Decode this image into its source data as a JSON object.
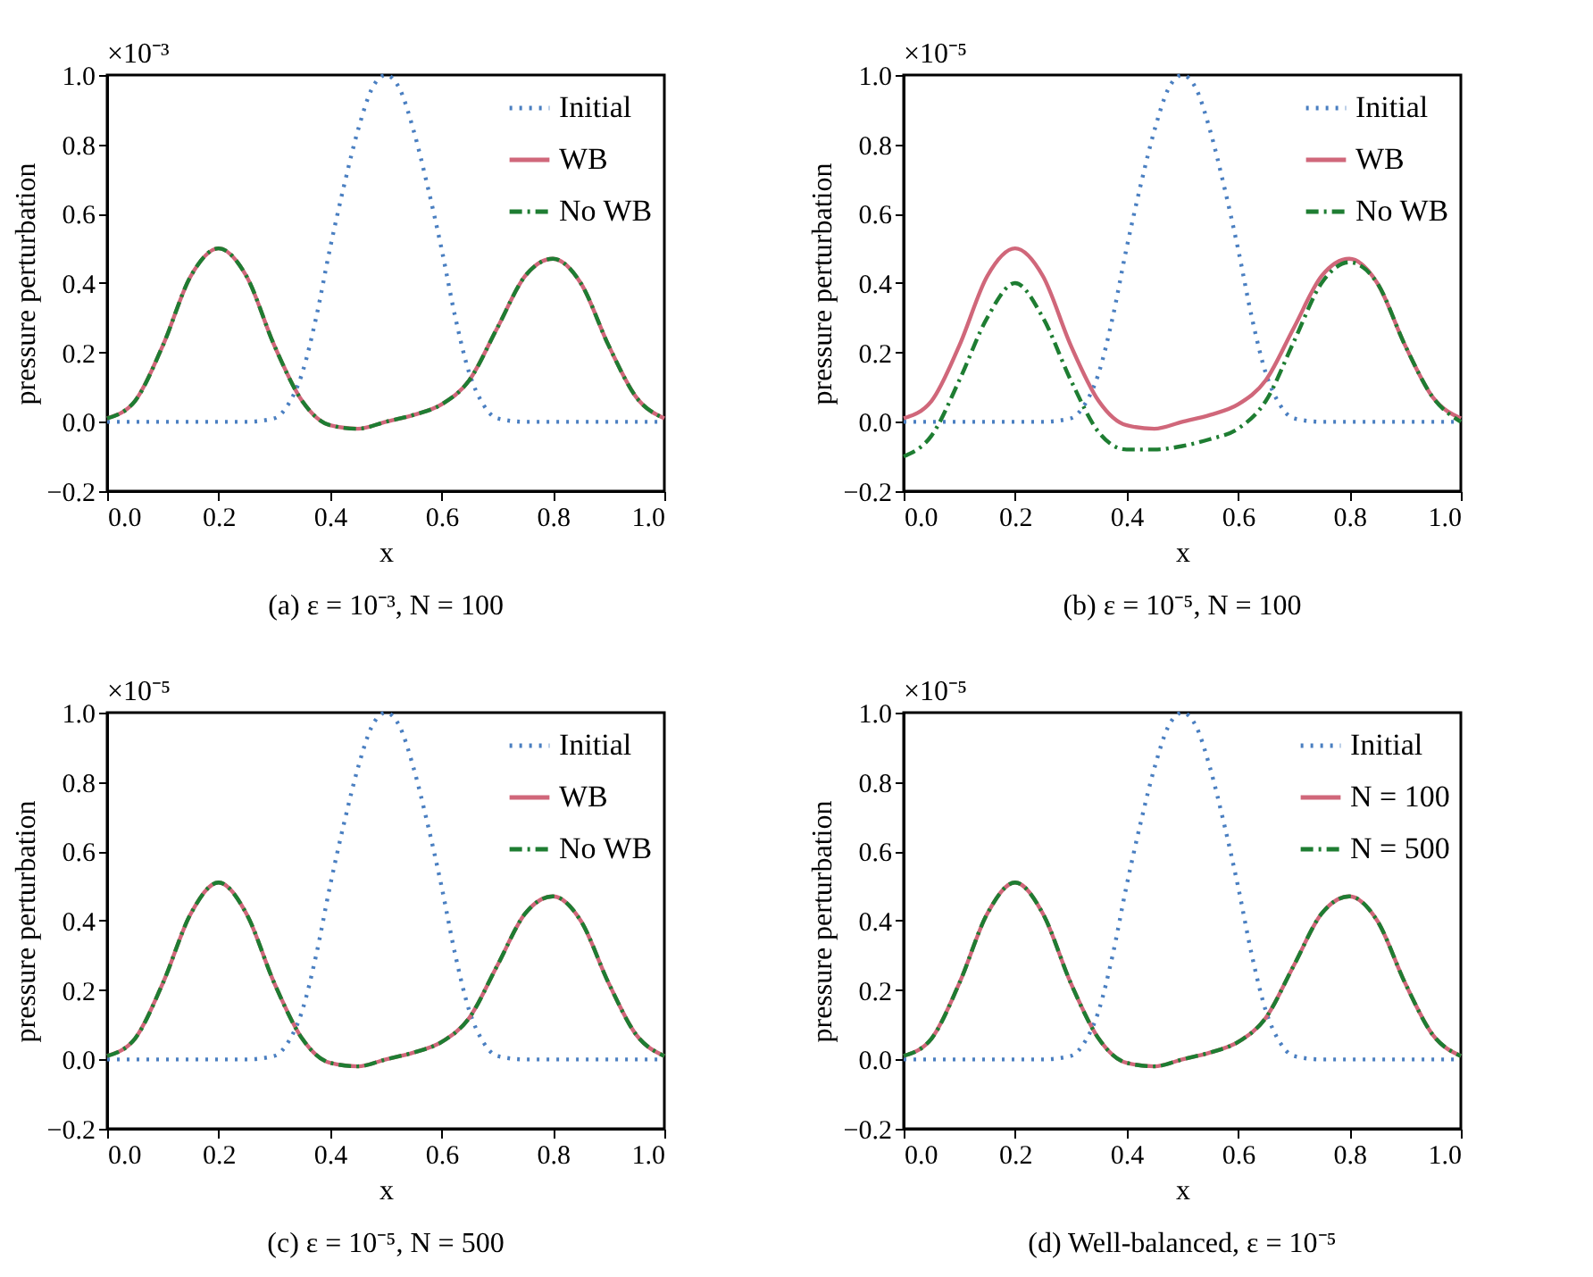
{
  "chart_data": [
    {
      "type": "line",
      "title": "(a) ε = 10⁻³, N = 100",
      "xlabel": "x",
      "ylabel": "pressure perturbation",
      "annotations": [
        "×10⁻³"
      ],
      "legend": "top right",
      "grid": false,
      "xlim": [
        0,
        1
      ],
      "ylim": [
        -0.2,
        1.0
      ],
      "xticks": [
        {
          "value": 0,
          "label": "0.0"
        },
        {
          "value": 0.2,
          "label": "0.2"
        },
        {
          "value": 0.4,
          "label": "0.4"
        },
        {
          "value": 0.6,
          "label": "0.6"
        },
        {
          "value": 0.8,
          "label": "0.8"
        },
        {
          "value": 1,
          "label": "1.0"
        }
      ],
      "yticks": [
        {
          "value": -0.2,
          "label": "−0.2"
        },
        {
          "value": 0,
          "label": "0.0"
        },
        {
          "value": 0.2,
          "label": "0.2"
        },
        {
          "value": 0.4,
          "label": "0.4"
        },
        {
          "value": 0.6,
          "label": "0.6"
        },
        {
          "value": 0.8,
          "label": "0.8"
        },
        {
          "value": 1,
          "label": "1.0"
        }
      ],
      "series": [
        {
          "name": "Initial",
          "color": "#4a7fc1",
          "line_style": "dotted",
          "x": [
            0,
            0.1,
            0.2,
            0.25,
            0.3,
            0.325,
            0.35,
            0.375,
            0.4,
            0.425,
            0.45,
            0.475,
            0.5,
            0.525,
            0.55,
            0.575,
            0.6,
            0.625,
            0.65,
            0.675,
            0.7,
            0.75,
            0.8,
            0.9,
            1
          ],
          "values": [
            0,
            0,
            0,
            0,
            0.01,
            0.05,
            0.14,
            0.3,
            0.5,
            0.68,
            0.84,
            0.96,
            1.0,
            0.96,
            0.84,
            0.68,
            0.5,
            0.3,
            0.14,
            0.05,
            0.01,
            0,
            0,
            0,
            0
          ]
        },
        {
          "name": "WB",
          "color": "#d0677a",
          "line_style": "solid",
          "x": [
            0,
            0.05,
            0.1,
            0.15,
            0.2,
            0.25,
            0.3,
            0.35,
            0.4,
            0.45,
            0.5,
            0.55,
            0.6,
            0.65,
            0.7,
            0.75,
            0.8,
            0.85,
            0.9,
            0.95,
            1
          ],
          "values": [
            0.01,
            0.06,
            0.22,
            0.42,
            0.5,
            0.42,
            0.22,
            0.06,
            -0.01,
            -0.02,
            0.0,
            0.02,
            0.05,
            0.12,
            0.27,
            0.42,
            0.47,
            0.4,
            0.22,
            0.07,
            0.01
          ]
        },
        {
          "name": "No WB",
          "color": "#1e7d32",
          "line_style": "dashed",
          "x": [
            0,
            0.05,
            0.1,
            0.15,
            0.2,
            0.25,
            0.3,
            0.35,
            0.4,
            0.45,
            0.5,
            0.55,
            0.6,
            0.65,
            0.7,
            0.75,
            0.8,
            0.85,
            0.9,
            0.95,
            1
          ],
          "values": [
            0.01,
            0.06,
            0.22,
            0.42,
            0.5,
            0.42,
            0.22,
            0.06,
            -0.01,
            -0.02,
            0.0,
            0.02,
            0.05,
            0.12,
            0.27,
            0.42,
            0.47,
            0.4,
            0.22,
            0.07,
            0.01
          ]
        }
      ]
    },
    {
      "type": "line",
      "title": "(b) ε = 10⁻⁵, N = 100",
      "xlabel": "x",
      "ylabel": "pressure perturbation",
      "annotations": [
        "×10⁻⁵"
      ],
      "legend": "top right",
      "grid": false,
      "xlim": [
        0,
        1
      ],
      "ylim": [
        -0.2,
        1.0
      ],
      "xticks": [
        {
          "value": 0,
          "label": "0.0"
        },
        {
          "value": 0.2,
          "label": "0.2"
        },
        {
          "value": 0.4,
          "label": "0.4"
        },
        {
          "value": 0.6,
          "label": "0.6"
        },
        {
          "value": 0.8,
          "label": "0.8"
        },
        {
          "value": 1,
          "label": "1.0"
        }
      ],
      "yticks": [
        {
          "value": -0.2,
          "label": "−0.2"
        },
        {
          "value": 0,
          "label": "0.0"
        },
        {
          "value": 0.2,
          "label": "0.2"
        },
        {
          "value": 0.4,
          "label": "0.4"
        },
        {
          "value": 0.6,
          "label": "0.6"
        },
        {
          "value": 0.8,
          "label": "0.8"
        },
        {
          "value": 1,
          "label": "1.0"
        }
      ],
      "series": [
        {
          "name": "Initial",
          "color": "#4a7fc1",
          "line_style": "dotted",
          "x": [
            0,
            0.1,
            0.2,
            0.25,
            0.3,
            0.325,
            0.35,
            0.375,
            0.4,
            0.425,
            0.45,
            0.475,
            0.5,
            0.525,
            0.55,
            0.575,
            0.6,
            0.625,
            0.65,
            0.675,
            0.7,
            0.75,
            0.8,
            0.9,
            1
          ],
          "values": [
            0,
            0,
            0,
            0,
            0.01,
            0.05,
            0.14,
            0.3,
            0.5,
            0.68,
            0.84,
            0.96,
            1.0,
            0.96,
            0.84,
            0.68,
            0.5,
            0.3,
            0.14,
            0.05,
            0.01,
            0,
            0,
            0,
            0
          ]
        },
        {
          "name": "WB",
          "color": "#d0677a",
          "line_style": "solid",
          "x": [
            0,
            0.05,
            0.1,
            0.15,
            0.2,
            0.25,
            0.3,
            0.35,
            0.4,
            0.45,
            0.5,
            0.55,
            0.6,
            0.65,
            0.7,
            0.75,
            0.8,
            0.85,
            0.9,
            0.95,
            1
          ],
          "values": [
            0.01,
            0.06,
            0.22,
            0.42,
            0.5,
            0.42,
            0.22,
            0.06,
            -0.01,
            -0.02,
            0.0,
            0.02,
            0.05,
            0.12,
            0.27,
            0.42,
            0.47,
            0.4,
            0.22,
            0.07,
            0.01
          ]
        },
        {
          "name": "No WB",
          "color": "#1e7d32",
          "line_style": "dashed",
          "x": [
            0,
            0.05,
            0.1,
            0.15,
            0.2,
            0.25,
            0.3,
            0.35,
            0.4,
            0.45,
            0.5,
            0.55,
            0.6,
            0.65,
            0.7,
            0.75,
            0.8,
            0.85,
            0.9,
            0.95,
            1
          ],
          "values": [
            -0.1,
            -0.04,
            0.12,
            0.3,
            0.4,
            0.3,
            0.12,
            -0.03,
            -0.08,
            -0.08,
            -0.07,
            -0.05,
            -0.02,
            0.06,
            0.23,
            0.4,
            0.46,
            0.4,
            0.22,
            0.07,
            0.0
          ]
        }
      ]
    },
    {
      "type": "line",
      "title": "(c) ε = 10⁻⁵, N = 500",
      "xlabel": "x",
      "ylabel": "pressure perturbation",
      "annotations": [
        "×10⁻⁵"
      ],
      "legend": "top right",
      "grid": false,
      "xlim": [
        0,
        1
      ],
      "ylim": [
        -0.2,
        1.0
      ],
      "xticks": [
        {
          "value": 0,
          "label": "0.0"
        },
        {
          "value": 0.2,
          "label": "0.2"
        },
        {
          "value": 0.4,
          "label": "0.4"
        },
        {
          "value": 0.6,
          "label": "0.6"
        },
        {
          "value": 0.8,
          "label": "0.8"
        },
        {
          "value": 1,
          "label": "1.0"
        }
      ],
      "yticks": [
        {
          "value": -0.2,
          "label": "−0.2"
        },
        {
          "value": 0,
          "label": "0.0"
        },
        {
          "value": 0.2,
          "label": "0.2"
        },
        {
          "value": 0.4,
          "label": "0.4"
        },
        {
          "value": 0.6,
          "label": "0.6"
        },
        {
          "value": 0.8,
          "label": "0.8"
        },
        {
          "value": 1,
          "label": "1.0"
        }
      ],
      "series": [
        {
          "name": "Initial",
          "color": "#4a7fc1",
          "line_style": "dotted",
          "x": [
            0,
            0.1,
            0.2,
            0.25,
            0.3,
            0.325,
            0.35,
            0.375,
            0.4,
            0.425,
            0.45,
            0.475,
            0.5,
            0.525,
            0.55,
            0.575,
            0.6,
            0.625,
            0.65,
            0.675,
            0.7,
            0.75,
            0.8,
            0.9,
            1
          ],
          "values": [
            0,
            0,
            0,
            0,
            0.01,
            0.05,
            0.14,
            0.3,
            0.5,
            0.68,
            0.84,
            0.96,
            1.0,
            0.96,
            0.84,
            0.68,
            0.5,
            0.3,
            0.14,
            0.05,
            0.01,
            0,
            0,
            0,
            0
          ]
        },
        {
          "name": "WB",
          "color": "#d0677a",
          "line_style": "solid",
          "x": [
            0,
            0.05,
            0.1,
            0.15,
            0.2,
            0.25,
            0.3,
            0.35,
            0.4,
            0.45,
            0.5,
            0.55,
            0.6,
            0.65,
            0.7,
            0.75,
            0.8,
            0.85,
            0.9,
            0.95,
            1
          ],
          "values": [
            0.01,
            0.06,
            0.22,
            0.42,
            0.51,
            0.42,
            0.22,
            0.06,
            -0.01,
            -0.02,
            0.0,
            0.02,
            0.05,
            0.12,
            0.27,
            0.42,
            0.47,
            0.4,
            0.22,
            0.07,
            0.01
          ]
        },
        {
          "name": "No WB",
          "color": "#1e7d32",
          "line_style": "dashed",
          "x": [
            0,
            0.05,
            0.1,
            0.15,
            0.2,
            0.25,
            0.3,
            0.35,
            0.4,
            0.45,
            0.5,
            0.55,
            0.6,
            0.65,
            0.7,
            0.75,
            0.8,
            0.85,
            0.9,
            0.95,
            1
          ],
          "values": [
            0.01,
            0.06,
            0.22,
            0.42,
            0.51,
            0.42,
            0.22,
            0.06,
            -0.01,
            -0.02,
            0.0,
            0.02,
            0.05,
            0.12,
            0.27,
            0.42,
            0.47,
            0.4,
            0.22,
            0.07,
            0.01
          ]
        }
      ]
    },
    {
      "type": "line",
      "title": "(d) Well-balanced, ε = 10⁻⁵",
      "xlabel": "x",
      "ylabel": "pressure perturbation",
      "annotations": [
        "×10⁻⁵"
      ],
      "legend": "top right",
      "grid": false,
      "xlim": [
        0,
        1
      ],
      "ylim": [
        -0.2,
        1.0
      ],
      "xticks": [
        {
          "value": 0,
          "label": "0.0"
        },
        {
          "value": 0.2,
          "label": "0.2"
        },
        {
          "value": 0.4,
          "label": "0.4"
        },
        {
          "value": 0.6,
          "label": "0.6"
        },
        {
          "value": 0.8,
          "label": "0.8"
        },
        {
          "value": 1,
          "label": "1.0"
        }
      ],
      "yticks": [
        {
          "value": -0.2,
          "label": "−0.2"
        },
        {
          "value": 0,
          "label": "0.0"
        },
        {
          "value": 0.2,
          "label": "0.2"
        },
        {
          "value": 0.4,
          "label": "0.4"
        },
        {
          "value": 0.6,
          "label": "0.6"
        },
        {
          "value": 0.8,
          "label": "0.8"
        },
        {
          "value": 1,
          "label": "1.0"
        }
      ],
      "series": [
        {
          "name": "Initial",
          "color": "#4a7fc1",
          "line_style": "dotted",
          "x": [
            0,
            0.1,
            0.2,
            0.25,
            0.3,
            0.325,
            0.35,
            0.375,
            0.4,
            0.425,
            0.45,
            0.475,
            0.5,
            0.525,
            0.55,
            0.575,
            0.6,
            0.625,
            0.65,
            0.675,
            0.7,
            0.75,
            0.8,
            0.9,
            1
          ],
          "values": [
            0,
            0,
            0,
            0,
            0.01,
            0.05,
            0.14,
            0.3,
            0.5,
            0.68,
            0.84,
            0.96,
            1.0,
            0.96,
            0.84,
            0.68,
            0.5,
            0.3,
            0.14,
            0.05,
            0.01,
            0,
            0,
            0,
            0
          ]
        },
        {
          "name": "N = 100",
          "color": "#d0677a",
          "line_style": "solid",
          "x": [
            0,
            0.05,
            0.1,
            0.15,
            0.2,
            0.25,
            0.3,
            0.35,
            0.4,
            0.45,
            0.5,
            0.55,
            0.6,
            0.65,
            0.7,
            0.75,
            0.8,
            0.85,
            0.9,
            0.95,
            1
          ],
          "values": [
            0.01,
            0.06,
            0.22,
            0.42,
            0.51,
            0.42,
            0.22,
            0.06,
            -0.01,
            -0.02,
            0.0,
            0.02,
            0.05,
            0.12,
            0.27,
            0.42,
            0.47,
            0.4,
            0.22,
            0.07,
            0.01
          ]
        },
        {
          "name": "N = 500",
          "color": "#1e7d32",
          "line_style": "dashed",
          "x": [
            0,
            0.05,
            0.1,
            0.15,
            0.2,
            0.25,
            0.3,
            0.35,
            0.4,
            0.45,
            0.5,
            0.55,
            0.6,
            0.65,
            0.7,
            0.75,
            0.8,
            0.85,
            0.9,
            0.95,
            1
          ],
          "values": [
            0.01,
            0.06,
            0.22,
            0.42,
            0.51,
            0.42,
            0.22,
            0.06,
            -0.01,
            -0.02,
            0.0,
            0.02,
            0.05,
            0.12,
            0.27,
            0.42,
            0.47,
            0.4,
            0.22,
            0.07,
            0.01
          ]
        }
      ]
    }
  ]
}
